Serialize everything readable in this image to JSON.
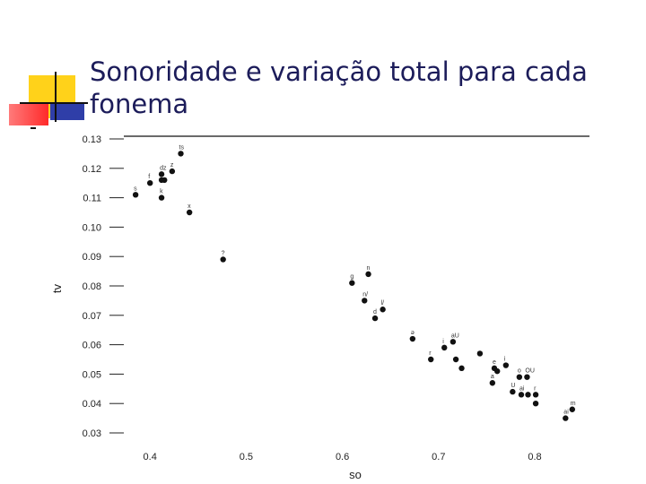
{
  "slide": {
    "title": "Sonoridade e variação total para cada fonema",
    "colors": {
      "title": "#1c1c5a",
      "yellow": "#ffd21a",
      "red": "#ff3b3b",
      "blue": "#2f3ea8",
      "rule": "#111111"
    }
  },
  "chart_data": {
    "type": "scatter",
    "xlabel": "so",
    "ylabel": "tv",
    "xlim": [
      0.36,
      0.86
    ],
    "ylim": [
      0.03,
      0.13
    ],
    "xticks": [
      "0.4",
      "0.5",
      "0.6",
      "0.7",
      "0.8"
    ],
    "yticks": [
      "0.03",
      "0.04",
      "0.05",
      "0.06",
      "0.07",
      "0.08",
      "0.09",
      "0.10",
      "0.11",
      "0.12",
      "0.13"
    ],
    "grid": false,
    "points": [
      {
        "x": 0.432,
        "y": 0.125,
        "label": "ts"
      },
      {
        "x": 0.423,
        "y": 0.119,
        "label": "z"
      },
      {
        "x": 0.412,
        "y": 0.118,
        "label": "dz"
      },
      {
        "x": 0.4,
        "y": 0.115,
        "label": "f"
      },
      {
        "x": 0.412,
        "y": 0.116,
        "label": ""
      },
      {
        "x": 0.415,
        "y": 0.116,
        "label": ""
      },
      {
        "x": 0.385,
        "y": 0.111,
        "label": "s"
      },
      {
        "x": 0.412,
        "y": 0.11,
        "label": "k"
      },
      {
        "x": 0.441,
        "y": 0.105,
        "label": "x"
      },
      {
        "x": 0.476,
        "y": 0.089,
        "label": "?"
      },
      {
        "x": 0.627,
        "y": 0.084,
        "label": "n"
      },
      {
        "x": 0.61,
        "y": 0.081,
        "label": "g"
      },
      {
        "x": 0.623,
        "y": 0.075,
        "label": "n/"
      },
      {
        "x": 0.642,
        "y": 0.072,
        "label": "l/"
      },
      {
        "x": 0.634,
        "y": 0.069,
        "label": "d"
      },
      {
        "x": 0.673,
        "y": 0.062,
        "label": "ə"
      },
      {
        "x": 0.715,
        "y": 0.061,
        "label": "aU"
      },
      {
        "x": 0.706,
        "y": 0.059,
        "label": "i"
      },
      {
        "x": 0.692,
        "y": 0.055,
        "label": "r"
      },
      {
        "x": 0.718,
        "y": 0.055,
        "label": ""
      },
      {
        "x": 0.724,
        "y": 0.052,
        "label": ""
      },
      {
        "x": 0.743,
        "y": 0.057,
        "label": ""
      },
      {
        "x": 0.77,
        "y": 0.053,
        "label": "i"
      },
      {
        "x": 0.758,
        "y": 0.052,
        "label": "e"
      },
      {
        "x": 0.761,
        "y": 0.051,
        "label": ""
      },
      {
        "x": 0.756,
        "y": 0.047,
        "label": "a"
      },
      {
        "x": 0.784,
        "y": 0.049,
        "label": "o"
      },
      {
        "x": 0.792,
        "y": 0.049,
        "label": "OU"
      },
      {
        "x": 0.777,
        "y": 0.044,
        "label": "U"
      },
      {
        "x": 0.786,
        "y": 0.043,
        "label": "ai"
      },
      {
        "x": 0.793,
        "y": 0.043,
        "label": ""
      },
      {
        "x": 0.801,
        "y": 0.043,
        "label": "r"
      },
      {
        "x": 0.801,
        "y": 0.04,
        "label": ""
      },
      {
        "x": 0.839,
        "y": 0.038,
        "label": "m"
      },
      {
        "x": 0.832,
        "y": 0.035,
        "label": "ai"
      }
    ]
  }
}
